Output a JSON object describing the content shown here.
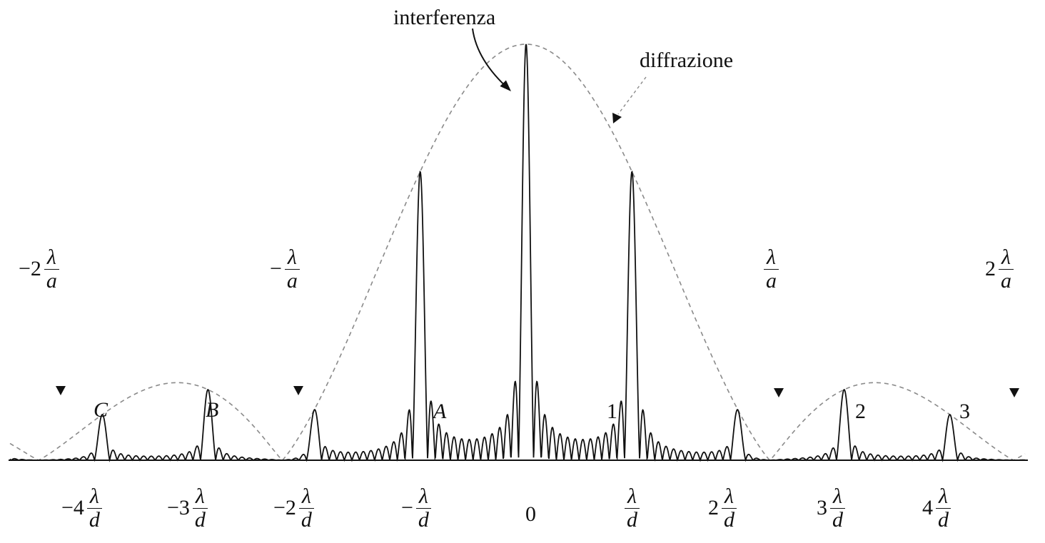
{
  "labels": {
    "interference": "interferenza",
    "diffraction": "diffrazione",
    "point_c": "C",
    "point_b": "B",
    "point_a": "A",
    "order_1": "1",
    "order_2": "2",
    "order_3": "3",
    "origin": "0"
  },
  "lambda_symbol": "λ",
  "slit_width_symbol": "a",
  "slit_spacing_symbol": "d",
  "diffraction_minima": [
    {
      "coef": "−2",
      "k": -2
    },
    {
      "coef": "−",
      "k": -1
    },
    {
      "coef": "",
      "k": 1
    },
    {
      "coef": "2",
      "k": 2
    }
  ],
  "interference_maxima": [
    {
      "coef": "−4",
      "m": -4
    },
    {
      "coef": "−3",
      "m": -3
    },
    {
      "coef": "−2",
      "m": -2
    },
    {
      "coef": "−",
      "m": -1
    },
    {
      "coef": "",
      "m": 1
    },
    {
      "coef": "2",
      "m": 2
    },
    {
      "coef": "3",
      "m": 3
    },
    {
      "coef": "4",
      "m": 4
    }
  ],
  "model": {
    "slit_spacing_over_width": 2.3,
    "slit_count": 14
  },
  "colors": {
    "ink": "#111111",
    "envelope": "#8a8a8a"
  }
}
